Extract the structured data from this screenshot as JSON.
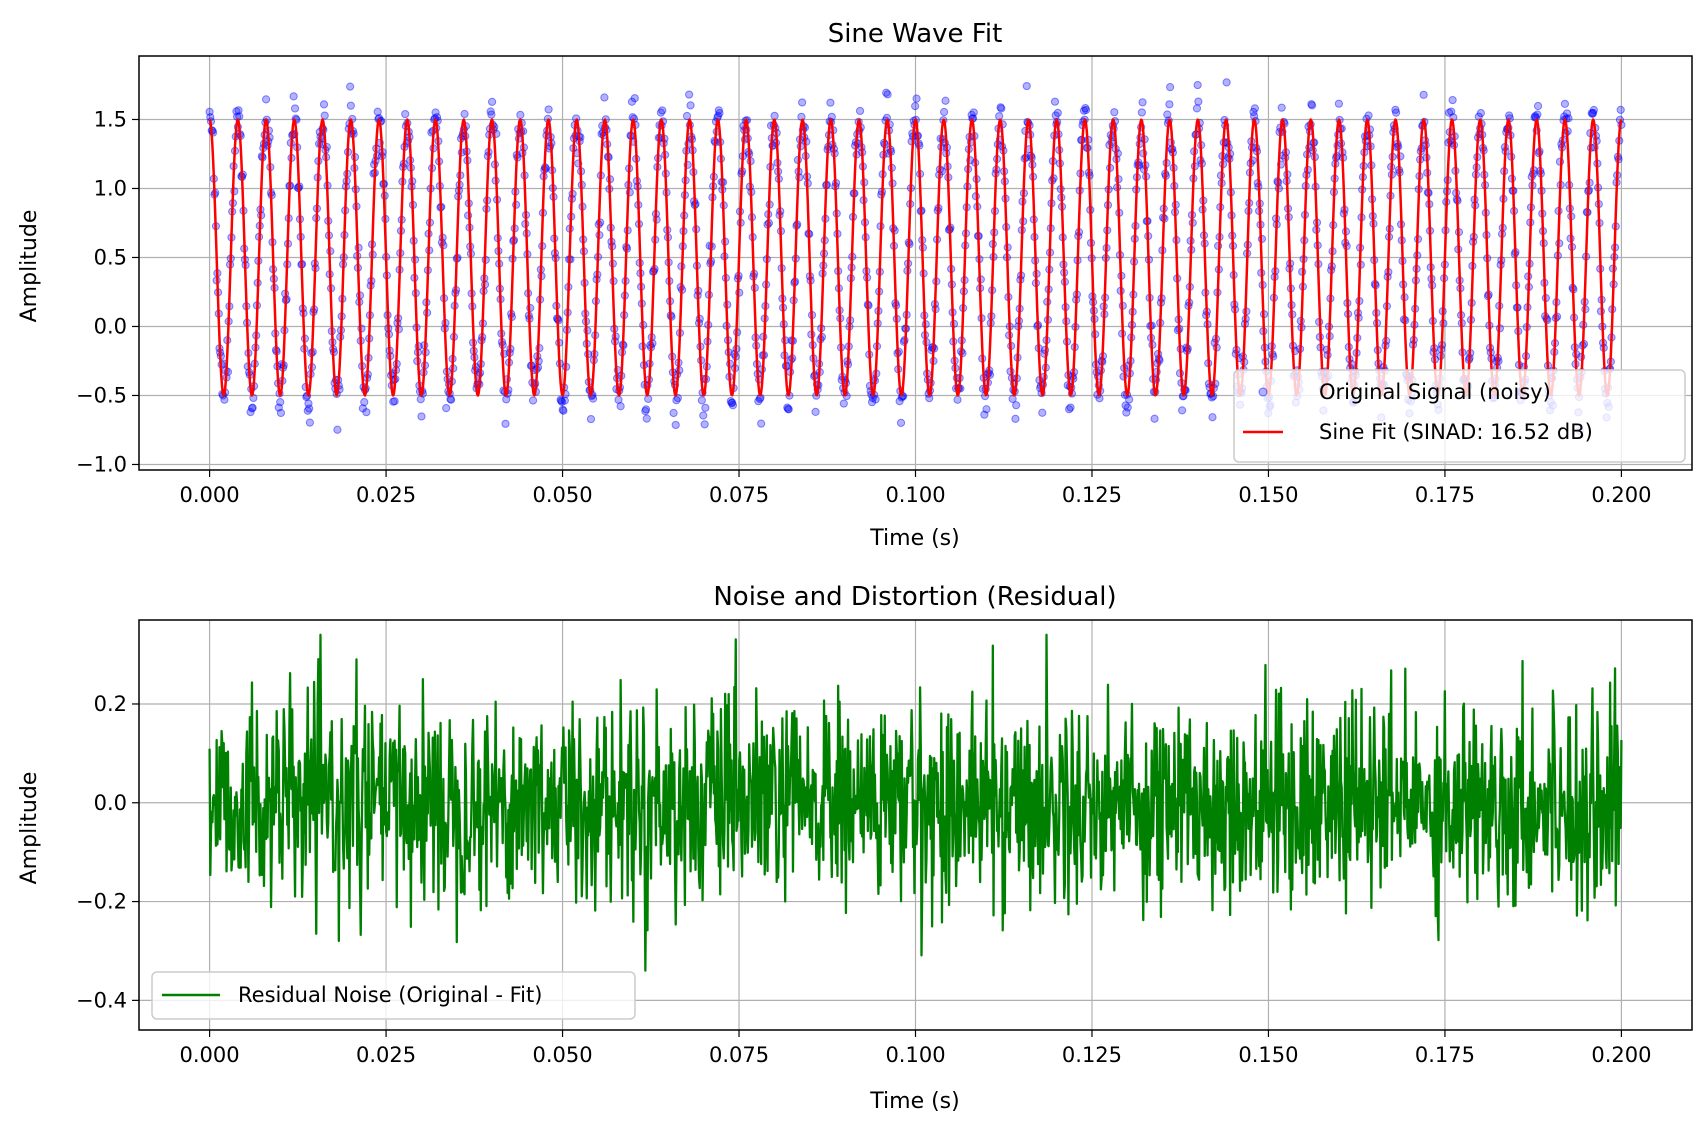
{
  "chart_data": [
    {
      "type": "line",
      "title": "Sine Wave Fit",
      "xlabel": "Time (s)",
      "ylabel": "Amplitude",
      "xlim": [
        -0.01,
        0.21
      ],
      "ylim": [
        -1.04,
        1.96
      ],
      "xticks": [
        0.0,
        0.025,
        0.05,
        0.075,
        0.1,
        0.125,
        0.15,
        0.175,
        0.2
      ],
      "xtick_labels": [
        "0.000",
        "0.025",
        "0.050",
        "0.075",
        "0.100",
        "0.125",
        "0.150",
        "0.175",
        "0.200"
      ],
      "yticks": [
        -1.0,
        -0.5,
        0.0,
        0.5,
        1.0,
        1.5
      ],
      "ytick_labels": [
        "−1.0",
        "−0.5",
        "0.0",
        "0.5",
        "1.0",
        "1.5"
      ],
      "grid": true,
      "legend_position": "lower-right",
      "series": [
        {
          "name": "Original Signal (noisy)",
          "style": "scatter",
          "color": "#0000ff",
          "model": {
            "offset": 0.5,
            "amplitude": 1.0,
            "frequency_hz": 250,
            "t_start": 0.0,
            "t_end": 0.2,
            "samples": 2000,
            "noise_std": 0.1
          }
        },
        {
          "name": "Sine Fit (SINAD: 16.52 dB)",
          "style": "line",
          "color": "#ff0000",
          "model": {
            "offset": 0.5,
            "amplitude": 1.0,
            "frequency_hz": 250,
            "t_start": 0.0,
            "t_end": 0.2,
            "samples": 2000
          }
        }
      ]
    },
    {
      "type": "line",
      "title": "Noise and Distortion (Residual)",
      "xlabel": "Time (s)",
      "ylabel": "Amplitude",
      "xlim": [
        -0.01,
        0.21
      ],
      "ylim": [
        -0.46,
        0.37
      ],
      "xticks": [
        0.0,
        0.025,
        0.05,
        0.075,
        0.1,
        0.125,
        0.15,
        0.175,
        0.2
      ],
      "xtick_labels": [
        "0.000",
        "0.025",
        "0.050",
        "0.075",
        "0.100",
        "0.125",
        "0.150",
        "0.175",
        "0.200"
      ],
      "yticks": [
        -0.4,
        -0.2,
        0.0,
        0.2
      ],
      "ytick_labels": [
        "−0.4",
        "−0.2",
        "0.0",
        "0.2"
      ],
      "grid": true,
      "legend_position": "lower-left",
      "series": [
        {
          "name": "Residual Noise (Original - Fit)",
          "style": "line",
          "color": "#008000",
          "model": {
            "t_start": 0.0,
            "t_end": 0.2,
            "samples": 2000,
            "noise_std": 0.1,
            "min": -0.42,
            "max": 0.34
          }
        }
      ]
    }
  ]
}
